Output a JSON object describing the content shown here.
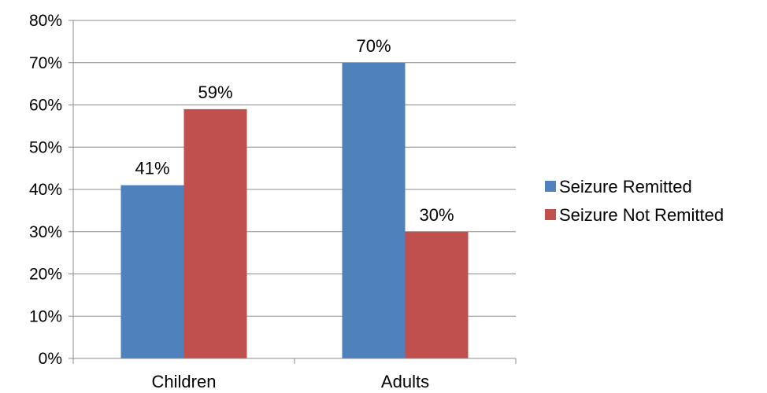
{
  "chart_data": {
    "type": "bar",
    "categories": [
      "Children",
      "Adults"
    ],
    "series": [
      {
        "name": "Seizure Remitted",
        "values": [
          41,
          70
        ],
        "color": "#4F81BD"
      },
      {
        "name": "Seizure Not Remitted",
        "values": [
          59,
          30
        ],
        "color": "#C0504D"
      }
    ],
    "data_labels": [
      [
        "41%",
        "70%"
      ],
      [
        "59%",
        "30%"
      ]
    ],
    "y_ticks": [
      "0%",
      "10%",
      "20%",
      "30%",
      "40%",
      "50%",
      "60%",
      "70%",
      "80%"
    ],
    "ylim": [
      0,
      80
    ],
    "grid": true,
    "legend_position": "right",
    "title": "",
    "xlabel": "",
    "ylabel": ""
  }
}
